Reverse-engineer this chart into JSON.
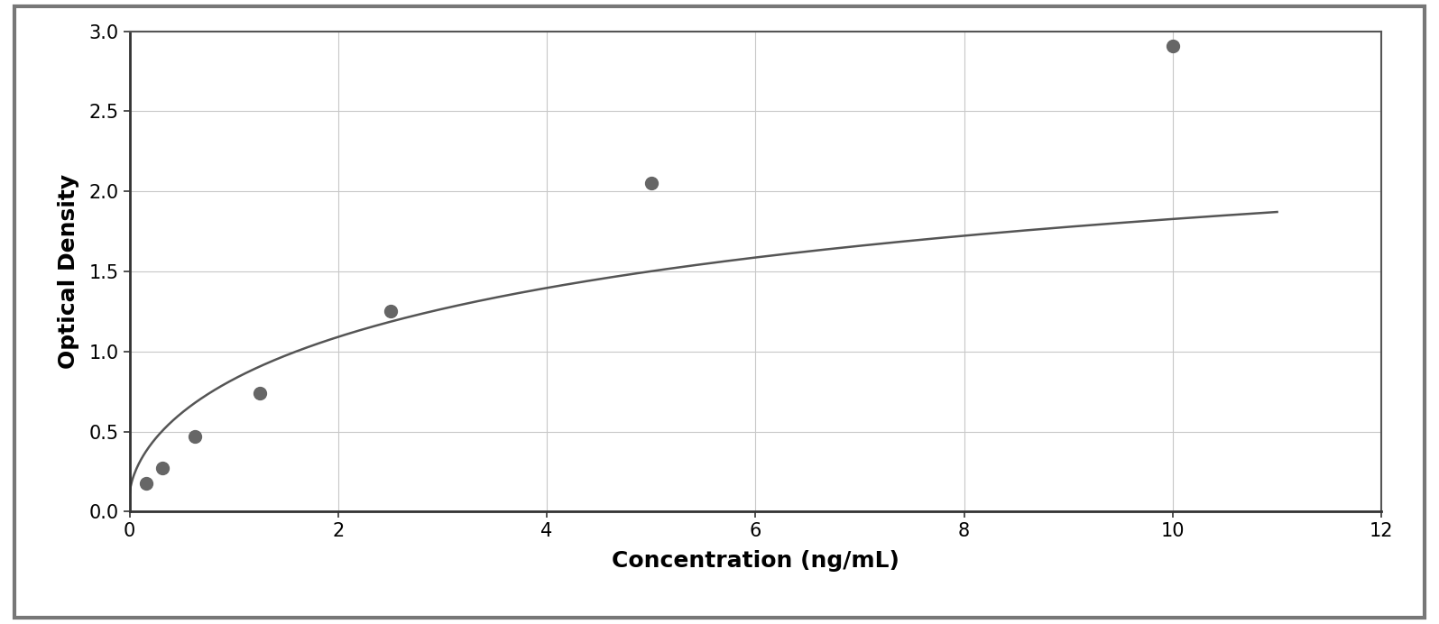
{
  "x_data": [
    0.156,
    0.313,
    0.625,
    1.25,
    2.5,
    5.0,
    10.0
  ],
  "y_data": [
    0.175,
    0.27,
    0.47,
    0.74,
    1.25,
    2.05,
    2.91
  ],
  "xlabel": "Concentration (ng/mL)",
  "ylabel": "Optical Density",
  "xlim": [
    0,
    12
  ],
  "ylim": [
    0,
    3.0
  ],
  "xticks": [
    0,
    2,
    4,
    6,
    8,
    10,
    12
  ],
  "yticks": [
    0,
    0.5,
    1.0,
    1.5,
    2.0,
    2.5,
    3.0
  ],
  "data_color": "#666666",
  "line_color": "#555555",
  "marker_size": 10,
  "line_width": 1.8,
  "background_color": "#ffffff",
  "plot_bg_color": "#ffffff",
  "grid_color": "#c8c8c8",
  "border_color": "#444444",
  "outer_border_color": "#888888",
  "xlabel_fontsize": 18,
  "ylabel_fontsize": 18,
  "tick_fontsize": 15,
  "xlabel_fontweight": "bold",
  "ylabel_fontweight": "bold",
  "curve_max": 3.15,
  "curve_half": 6.5,
  "curve_hill": 0.62
}
